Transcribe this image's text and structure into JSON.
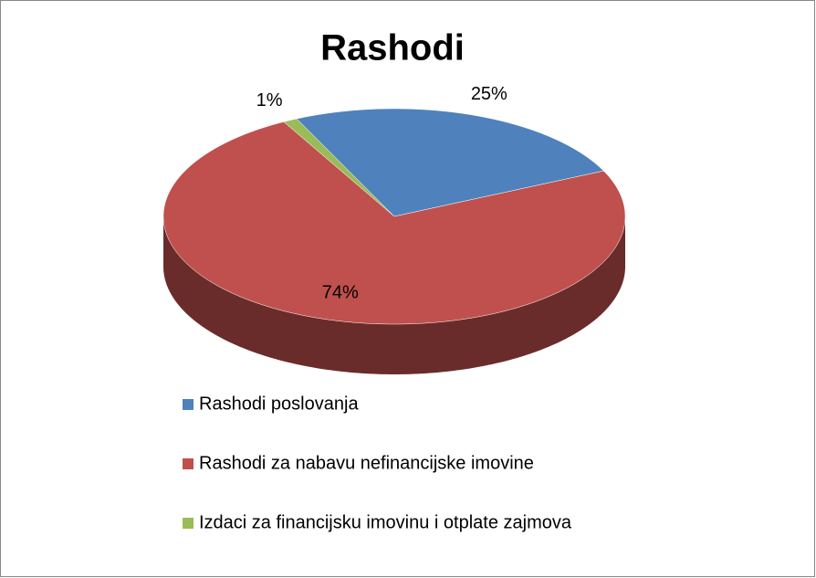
{
  "chart_data": {
    "type": "pie",
    "title": "Rashodi",
    "categories": [
      "Rashodi poslovanja",
      "Rashodi za nabavu nefinancijske imovine",
      "Izdaci za financijsku imovinu i otplate zajmova"
    ],
    "values": [
      25,
      74,
      1
    ],
    "value_labels": [
      "25%",
      "74%",
      "1%"
    ],
    "colors": [
      "#4f81bd",
      "#c0504d",
      "#9bbb59"
    ],
    "legend": "bottom"
  }
}
